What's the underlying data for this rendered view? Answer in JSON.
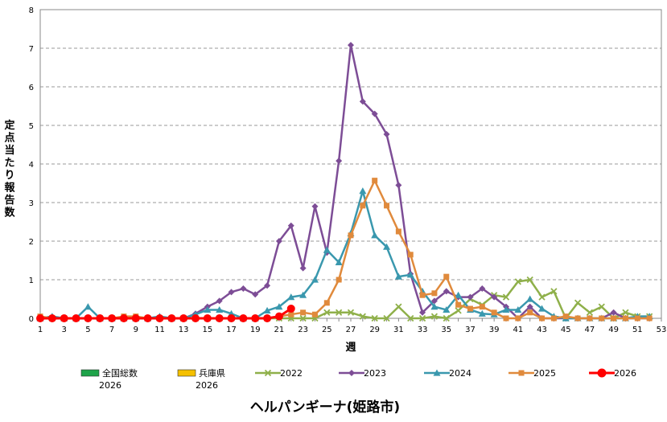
{
  "chart_data": {
    "type": "line",
    "title": "ヘルパンギーナ(姫路市)",
    "xlabel": "週",
    "ylabel": "定点当たり報告数",
    "xlim": [
      1,
      53
    ],
    "ylim": [
      0,
      8
    ],
    "x_ticks": [
      1,
      3,
      5,
      7,
      9,
      11,
      13,
      15,
      17,
      19,
      21,
      23,
      25,
      27,
      29,
      31,
      33,
      35,
      37,
      39,
      41,
      43,
      45,
      47,
      49,
      51,
      53
    ],
    "y_ticks": [
      0,
      1,
      2,
      3,
      4,
      5,
      6,
      7,
      8
    ],
    "grid": "horizontal dashed",
    "legend_position": "bottom",
    "legend": [
      {
        "name": "全国総数",
        "name2": "2026",
        "symbol": "bar",
        "color": "#1ea34a"
      },
      {
        "name": "兵庫県",
        "name2": "2026",
        "symbol": "bar",
        "color": "#f5c000"
      },
      {
        "name": "2022",
        "symbol": "x",
        "color": "#8fb04a"
      },
      {
        "name": "2023",
        "symbol": "diamond",
        "color": "#7d4d96"
      },
      {
        "name": "2024",
        "symbol": "triangle",
        "color": "#3a98ae"
      },
      {
        "name": "2025",
        "symbol": "square",
        "color": "#e08a3c"
      },
      {
        "name": "2026",
        "symbol": "circle",
        "color": "#ff0000"
      }
    ],
    "series": [
      {
        "name": "2022",
        "color": "#8fb04a",
        "marker": "x",
        "x": [
          1,
          2,
          3,
          4,
          5,
          6,
          7,
          8,
          9,
          10,
          11,
          12,
          13,
          14,
          15,
          16,
          17,
          18,
          19,
          20,
          21,
          22,
          23,
          24,
          25,
          26,
          27,
          28,
          29,
          30,
          31,
          32,
          33,
          34,
          35,
          36,
          37,
          38,
          39,
          40,
          41,
          42,
          43,
          44,
          45,
          46,
          47,
          48,
          49,
          50,
          51,
          52
        ],
        "values": [
          0,
          0,
          0,
          0,
          0,
          0,
          0,
          0,
          0,
          0,
          0,
          0,
          0,
          0,
          0,
          0,
          0,
          0,
          0,
          0,
          0,
          0,
          0,
          0,
          0.15,
          0.15,
          0.15,
          0.05,
          0,
          0,
          0.3,
          0,
          0,
          0.05,
          0,
          0.2,
          0.5,
          0.35,
          0.6,
          0.55,
          0.95,
          1.0,
          0.55,
          0.7,
          0,
          0.4,
          0.15,
          0.3,
          0,
          0.15,
          0.05,
          0.05
        ]
      },
      {
        "name": "2023",
        "color": "#7d4d96",
        "marker": "diamond",
        "x": [
          1,
          2,
          3,
          4,
          5,
          6,
          7,
          8,
          9,
          10,
          11,
          12,
          13,
          14,
          15,
          16,
          17,
          18,
          19,
          20,
          21,
          22,
          23,
          24,
          25,
          26,
          27,
          28,
          29,
          30,
          31,
          32,
          33,
          34,
          35,
          36,
          37,
          38,
          39,
          40,
          41,
          42,
          43,
          44,
          45,
          46,
          47,
          48,
          49,
          50,
          51,
          52
        ],
        "values": [
          0,
          0,
          0,
          0,
          0,
          0,
          0,
          0,
          0,
          0,
          0,
          0,
          0,
          0.12,
          0.3,
          0.45,
          0.68,
          0.77,
          0.62,
          0.85,
          2.0,
          2.4,
          1.3,
          2.9,
          1.7,
          4.08,
          7.08,
          5.62,
          5.3,
          4.77,
          3.45,
          1.15,
          0.15,
          0.45,
          0.7,
          0.55,
          0.55,
          0.77,
          0.55,
          0.3,
          0,
          0.3,
          0,
          0,
          0,
          0,
          0,
          0,
          0.15,
          0,
          0,
          0
        ]
      },
      {
        "name": "2024",
        "color": "#3a98ae",
        "marker": "triangle",
        "x": [
          1,
          2,
          3,
          4,
          5,
          6,
          7,
          8,
          9,
          10,
          11,
          12,
          13,
          14,
          15,
          16,
          17,
          18,
          19,
          20,
          21,
          22,
          23,
          24,
          25,
          26,
          27,
          28,
          29,
          30,
          31,
          32,
          33,
          34,
          35,
          36,
          37,
          38,
          39,
          40,
          41,
          42,
          43,
          44,
          45,
          46,
          47,
          48,
          49,
          50,
          51,
          52
        ],
        "values": [
          0,
          0.05,
          0,
          0,
          0.3,
          0,
          0,
          0,
          0,
          0,
          0.05,
          0,
          0,
          0.1,
          0.22,
          0.22,
          0.12,
          0,
          0,
          0.2,
          0.3,
          0.55,
          0.6,
          1.0,
          1.77,
          1.45,
          2.2,
          3.3,
          2.15,
          1.85,
          1.08,
          1.13,
          0.7,
          0.3,
          0.22,
          0.6,
          0.22,
          0.12,
          0.1,
          0.22,
          0.22,
          0.5,
          0.25,
          0.05,
          0,
          0,
          0,
          0,
          0,
          0,
          0.05,
          0.05
        ]
      },
      {
        "name": "2025",
        "color": "#e08a3c",
        "marker": "square",
        "x": [
          1,
          2,
          3,
          4,
          5,
          6,
          7,
          8,
          9,
          10,
          11,
          12,
          13,
          14,
          15,
          16,
          17,
          18,
          19,
          20,
          21,
          22,
          23,
          24,
          25,
          26,
          27,
          28,
          29,
          30,
          31,
          32,
          33,
          34,
          35,
          36,
          37,
          38,
          39,
          40,
          41,
          42,
          43,
          44,
          45,
          46,
          47,
          48,
          49,
          50,
          51,
          52
        ],
        "values": [
          0.05,
          0,
          0,
          0,
          0,
          0,
          0,
          0.05,
          0.05,
          0,
          0,
          0,
          0,
          0,
          0,
          0,
          0,
          0,
          0,
          0,
          0.05,
          0.1,
          0.15,
          0.1,
          0.4,
          1.0,
          2.15,
          2.92,
          3.57,
          2.92,
          2.25,
          1.65,
          0.6,
          0.65,
          1.08,
          0.35,
          0.25,
          0.3,
          0.15,
          0,
          0,
          0.15,
          0,
          0,
          0.05,
          0,
          0,
          0,
          0,
          0,
          0,
          0
        ]
      },
      {
        "name": "2026",
        "color": "#ff0000",
        "marker": "circle",
        "x": [
          1,
          2,
          3,
          4,
          5,
          6,
          7,
          8,
          9,
          10,
          11,
          12,
          13,
          14,
          15,
          16,
          17,
          18,
          19,
          20,
          21,
          22
        ],
        "values": [
          0,
          0,
          0,
          0,
          0,
          0,
          0,
          0,
          0,
          0,
          0,
          0,
          0,
          0,
          0,
          0,
          0,
          0,
          0,
          0,
          0.05,
          0.25
        ]
      }
    ]
  }
}
